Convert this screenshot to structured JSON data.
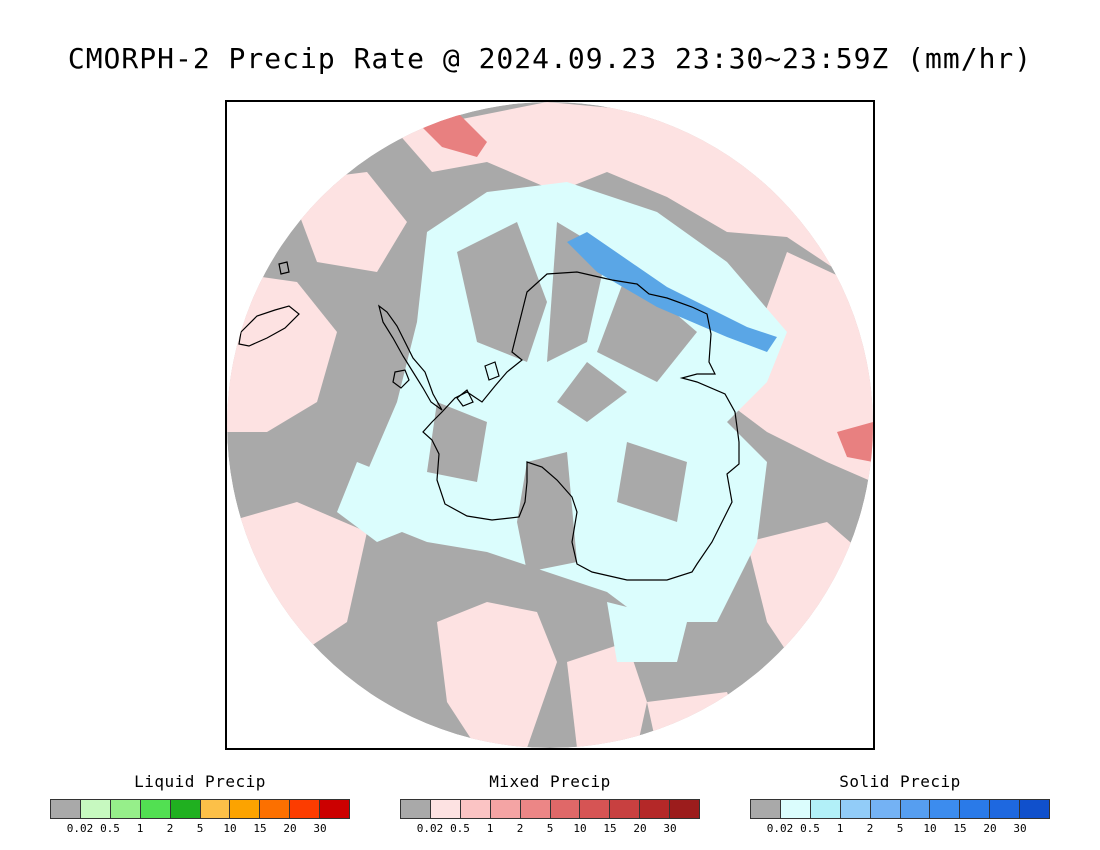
{
  "title": "CMORPH-2 Precip Rate @ 2024.09.23 23:30~23:59Z (mm/hr)",
  "map": {
    "projection": "south polar stereographic",
    "colors": {
      "no_precip": "#a9a9a9",
      "mixed_light": "#fde2e2",
      "mixed_medium": "#e88080",
      "solid_light": "#dbfdfd",
      "solid_medium": "#5aa6e6",
      "coast": "#000000"
    }
  },
  "legends": [
    {
      "title": "Liquid Precip",
      "colors": [
        "#a9a9a9",
        "#c7f9c0",
        "#96ef8a",
        "#52e052",
        "#20b020",
        "#fcc048",
        "#fca300",
        "#fc7000",
        "#fc3c00",
        "#cc0000"
      ],
      "ticks": [
        "0.02",
        "0.5",
        "1",
        "2",
        "5",
        "10",
        "15",
        "20",
        "30"
      ]
    },
    {
      "title": "Mixed Precip",
      "colors": [
        "#a9a9a9",
        "#fde2e2",
        "#fbc4c4",
        "#f4a4a4",
        "#ec8686",
        "#e06868",
        "#d65454",
        "#c84040",
        "#b42828",
        "#9c1c1c"
      ],
      "ticks": [
        "0.02",
        "0.5",
        "1",
        "2",
        "5",
        "10",
        "15",
        "20",
        "30"
      ]
    },
    {
      "title": "Solid Precip",
      "colors": [
        "#a9a9a9",
        "#dbfdfd",
        "#b2f0f8",
        "#92ccf8",
        "#74b2f4",
        "#569ef0",
        "#3c8cee",
        "#2a7ae8",
        "#1e68e0",
        "#1050cc"
      ],
      "ticks": [
        "0.02",
        "0.5",
        "1",
        "2",
        "5",
        "10",
        "15",
        "20",
        "30"
      ]
    }
  ]
}
